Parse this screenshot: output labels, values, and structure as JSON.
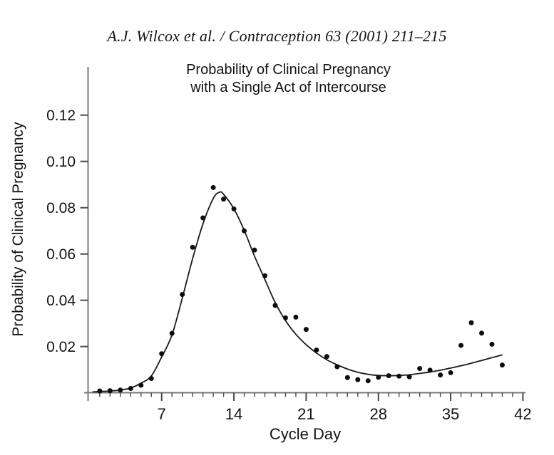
{
  "header": {
    "citation": "A.J. Wilcox et al. / Contraception 63 (2001) 211–215"
  },
  "chart_data": {
    "type": "scatter",
    "title": "Probability of Clinical Pregnancy with a Single Act of Intercourse",
    "title_lines": [
      "Probability of Clinical Pregnancy",
      "with a Single Act of Intercourse"
    ],
    "xlabel": "Cycle Day",
    "ylabel": "Probability of Clinical Pregnancy",
    "xlim": [
      0,
      42.5
    ],
    "ylim": [
      0,
      0.141
    ],
    "grid": false,
    "legend": "none",
    "x_ticks": [
      7,
      14,
      21,
      28,
      35,
      42
    ],
    "x_minor_step": 1,
    "y_ticks": [
      0.02,
      0.04,
      0.06,
      0.08,
      0.1,
      0.12
    ],
    "y_tick_labels": [
      "0.02",
      "0.04",
      "0.06",
      "0.08",
      "0.10",
      "0.12"
    ],
    "series": [
      {
        "name": "observed-daily-probability",
        "type": "scatter",
        "x": [
          1,
          2,
          3,
          4,
          5,
          6,
          7,
          8,
          9,
          10,
          11,
          12,
          13,
          14,
          15,
          16,
          17,
          18,
          19,
          20,
          21,
          22,
          23,
          24,
          25,
          26,
          27,
          28,
          29,
          30,
          31,
          32,
          33,
          34,
          35,
          36,
          37,
          38,
          39,
          40
        ],
        "y": [
          0.0008,
          0.0009,
          0.0012,
          0.0019,
          0.0033,
          0.0062,
          0.0169,
          0.0257,
          0.0425,
          0.0629,
          0.0756,
          0.0887,
          0.0837,
          0.0795,
          0.07,
          0.0617,
          0.0506,
          0.0378,
          0.0324,
          0.0327,
          0.0274,
          0.0185,
          0.0157,
          0.0113,
          0.0066,
          0.0057,
          0.0052,
          0.0067,
          0.0074,
          0.0072,
          0.0069,
          0.0105,
          0.0098,
          0.0077,
          0.0087,
          0.0205,
          0.0303,
          0.0258,
          0.021,
          0.012
        ]
      },
      {
        "name": "fitted-curve",
        "type": "line",
        "points": [
          [
            0.3,
            0.0004
          ],
          [
            1,
            0.0006
          ],
          [
            2,
            0.0008
          ],
          [
            3,
            0.0012
          ],
          [
            4,
            0.0021
          ],
          [
            5,
            0.0042
          ],
          [
            6,
            0.0073
          ],
          [
            7,
            0.0155
          ],
          [
            8,
            0.025
          ],
          [
            9,
            0.041
          ],
          [
            10,
            0.058
          ],
          [
            11,
            0.073
          ],
          [
            12,
            0.084
          ],
          [
            12.6,
            0.0867
          ],
          [
            13,
            0.0858
          ],
          [
            14,
            0.0795
          ],
          [
            15,
            0.0702
          ],
          [
            16,
            0.059
          ],
          [
            17,
            0.049
          ],
          [
            18,
            0.039
          ],
          [
            19,
            0.0312
          ],
          [
            20,
            0.0253
          ],
          [
            21,
            0.0208
          ],
          [
            22,
            0.0172
          ],
          [
            23,
            0.0143
          ],
          [
            24,
            0.0121
          ],
          [
            25,
            0.0103
          ],
          [
            26,
            0.0089
          ],
          [
            27,
            0.008
          ],
          [
            28,
            0.0075
          ],
          [
            29,
            0.0074
          ],
          [
            30,
            0.0075
          ],
          [
            31,
            0.0078
          ],
          [
            32,
            0.0084
          ],
          [
            33,
            0.009
          ],
          [
            34,
            0.0098
          ],
          [
            35,
            0.0107
          ],
          [
            36,
            0.0117
          ],
          [
            37,
            0.0128
          ],
          [
            38,
            0.014
          ],
          [
            39,
            0.0152
          ],
          [
            40,
            0.0164
          ]
        ]
      }
    ]
  },
  "colors": {
    "background": "#ffffff",
    "point": "#0d0d0d",
    "curve": "#1a1a1a",
    "axis_line": "#787878",
    "tick": "#4a4a4a",
    "text": "#141414"
  }
}
